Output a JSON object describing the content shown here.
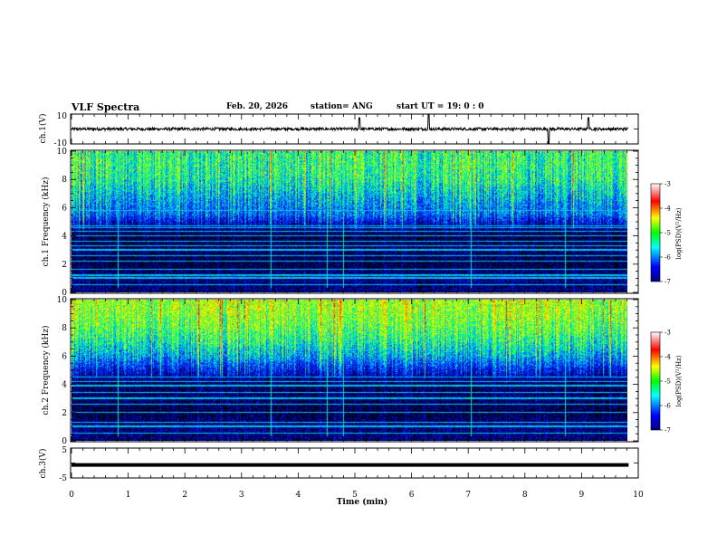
{
  "header": {
    "title": "VLF Spectra",
    "date": "Feb. 20, 2026",
    "station": "station= ANG",
    "start_time": "start  UT =   19: 0  : 0"
  },
  "chart_data": [
    {
      "type": "line",
      "panel": "ch1-waveform",
      "ylabel": "ch.1(V)",
      "ylim": [
        -10,
        10
      ],
      "ytick_labels": [
        "-10",
        "10"
      ],
      "baseline_v": 0.0,
      "noise_amplitude_v": 1.0,
      "spikes": [
        [
          5.08,
          8
        ],
        [
          6.3,
          10
        ],
        [
          8.42,
          -10
        ],
        [
          9.12,
          8
        ]
      ]
    },
    {
      "type": "heatmap",
      "panel": "ch1-spectrogram",
      "ylabel": "ch.1 Frequency (kHz)",
      "ylim": [
        0,
        10
      ],
      "ytick_labels": [
        "0",
        "2",
        "4",
        "6",
        "8",
        "10"
      ],
      "colorbar": {
        "label": "log(PSD)(V²/Hz)",
        "range": [
          -7,
          -3
        ],
        "tick_labels": [
          "-3",
          "-4",
          "-5",
          "-6",
          "-7"
        ]
      },
      "spectral_profile": [
        [
          0,
          -6.6
        ],
        [
          1,
          -6.5
        ],
        [
          2,
          -6.8
        ],
        [
          3,
          -6.6
        ],
        [
          4,
          -6.8
        ],
        [
          5,
          -6.1
        ],
        [
          5.5,
          -5.6
        ],
        [
          6,
          -5.5
        ],
        [
          7,
          -5.2
        ],
        [
          8,
          -4.9
        ],
        [
          9,
          -4.8
        ],
        [
          10,
          -4.8
        ]
      ],
      "tone_lines_khz": [
        0.5,
        1.0,
        1.2,
        1.6,
        2.2,
        2.6,
        3.0,
        3.3,
        3.6,
        4.0,
        4.3,
        4.6,
        4.7,
        5.8
      ],
      "vertical_lines_min": [
        0.82,
        3.52,
        4.5,
        4.8,
        7.05,
        8.7
      ]
    },
    {
      "type": "heatmap",
      "panel": "ch2-spectrogram",
      "ylabel": "ch.2 Frequency (kHz)",
      "ylim": [
        0,
        10
      ],
      "ytick_labels": [
        "0",
        "2",
        "4",
        "6",
        "8",
        "10"
      ],
      "colorbar": {
        "label": "log(PSD)(V²/Hz)",
        "range": [
          -7,
          -3
        ],
        "tick_labels": [
          "-3",
          "-4",
          "-5",
          "-6",
          "-7"
        ]
      },
      "spectral_profile": [
        [
          0,
          -6.6
        ],
        [
          1,
          -6.5
        ],
        [
          2,
          -6.8
        ],
        [
          3,
          -6.6
        ],
        [
          4,
          -6.7
        ],
        [
          5,
          -6.0
        ],
        [
          6,
          -5.3
        ],
        [
          7,
          -4.9
        ],
        [
          8,
          -4.6
        ],
        [
          9,
          -4.4
        ],
        [
          10,
          -4.3
        ]
      ],
      "tone_lines_khz": [
        0.5,
        1.0,
        1.3,
        2.0,
        2.6,
        3.0,
        3.4,
        3.9,
        4.2,
        4.5
      ],
      "vertical_lines_min": [
        0.82,
        3.52,
        4.5,
        4.8,
        7.05,
        8.7
      ]
    },
    {
      "type": "line",
      "panel": "ch3-waveform",
      "ylabel": "ch.3(V)",
      "ylim": [
        -5,
        5
      ],
      "ytick_labels": [
        "-5",
        "5"
      ],
      "baseline_v": -0.7
    }
  ],
  "xaxis": {
    "label": "Time  (min)",
    "xlim": [
      0,
      10
    ],
    "data_end_min": 9.83,
    "tick_labels": [
      "0",
      "1",
      "2",
      "3",
      "4",
      "5",
      "6",
      "7",
      "8",
      "9",
      "10"
    ]
  },
  "colors": {
    "background": "#ffffff",
    "axis": "#000000",
    "trace": "#000000",
    "colormap": [
      "#000000",
      "#0000a0",
      "#0030ff",
      "#00c8ff",
      "#00ff80",
      "#a0ff00",
      "#ffff00",
      "#ff8000",
      "#ff0000",
      "#ffffff"
    ]
  }
}
